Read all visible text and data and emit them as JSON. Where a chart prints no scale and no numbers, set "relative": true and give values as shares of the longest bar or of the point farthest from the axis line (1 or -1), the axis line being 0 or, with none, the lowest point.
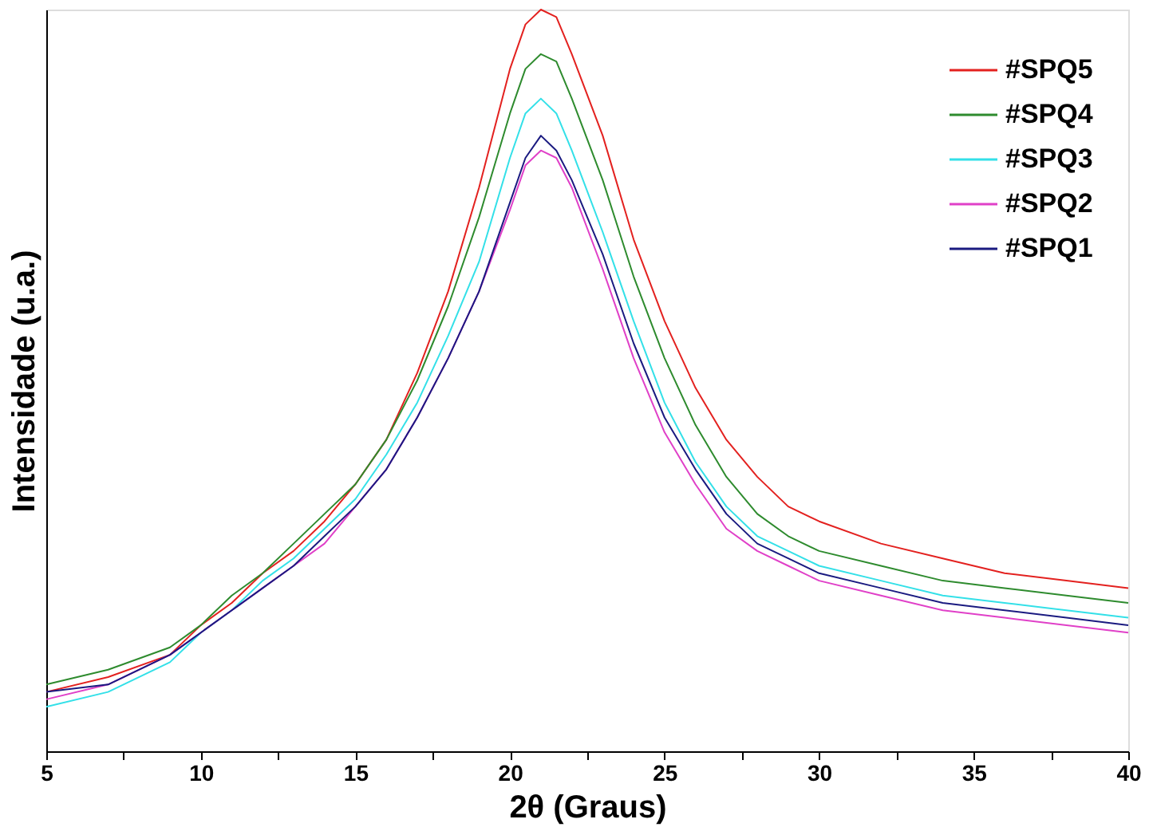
{
  "chart_data": {
    "type": "line",
    "xlabel": "2θ (Graus)",
    "ylabel": "Intensidade (u.a.)",
    "relative": true,
    "x": [
      5,
      7,
      9,
      10,
      11,
      12,
      13,
      14,
      15,
      16,
      17,
      18,
      19,
      20,
      20.5,
      21,
      21.5,
      22,
      23,
      24,
      25,
      26,
      27,
      28,
      29,
      30,
      32,
      34,
      36,
      38,
      40
    ],
    "xlim": [
      5,
      40
    ],
    "xticks": [
      5,
      {
        "value": 7.5,
        "label": null
      },
      10,
      {
        "value": 12.5,
        "label": null
      },
      15,
      {
        "value": 17.5,
        "label": null
      },
      20,
      {
        "value": 22.5,
        "label": null
      },
      25,
      {
        "value": 27.5,
        "label": null
      },
      30,
      {
        "value": 32.5,
        "label": null
      },
      35,
      {
        "value": 37.5,
        "label": null
      },
      40
    ],
    "legend": "top right",
    "grid": false,
    "marker": "none",
    "line_style": "solid",
    "series": [
      {
        "name": "#SPQ5",
        "color": "#e3211f",
        "values": [
          0.08,
          0.1,
          0.13,
          0.17,
          0.2,
          0.24,
          0.27,
          0.31,
          0.36,
          0.42,
          0.51,
          0.62,
          0.76,
          0.92,
          0.98,
          1.0,
          0.99,
          0.94,
          0.83,
          0.69,
          0.58,
          0.49,
          0.42,
          0.37,
          0.33,
          0.31,
          0.28,
          0.26,
          0.24,
          0.23,
          0.22
        ]
      },
      {
        "name": "#SPQ4",
        "color": "#2e8b2e",
        "values": [
          0.09,
          0.11,
          0.14,
          0.17,
          0.21,
          0.24,
          0.28,
          0.32,
          0.36,
          0.42,
          0.5,
          0.6,
          0.72,
          0.86,
          0.92,
          0.94,
          0.93,
          0.88,
          0.77,
          0.64,
          0.53,
          0.44,
          0.37,
          0.32,
          0.29,
          0.27,
          0.25,
          0.23,
          0.22,
          0.21,
          0.2
        ]
      },
      {
        "name": "#SPQ3",
        "color": "#33e0e8",
        "values": [
          0.06,
          0.08,
          0.12,
          0.16,
          0.19,
          0.23,
          0.26,
          0.3,
          0.34,
          0.4,
          0.47,
          0.56,
          0.66,
          0.8,
          0.86,
          0.88,
          0.86,
          0.81,
          0.7,
          0.58,
          0.47,
          0.39,
          0.33,
          0.29,
          0.27,
          0.25,
          0.23,
          0.21,
          0.2,
          0.19,
          0.18
        ]
      },
      {
        "name": "#SPQ2",
        "color": "#e040c8",
        "values": [
          0.07,
          0.09,
          0.13,
          0.16,
          0.19,
          0.22,
          0.25,
          0.28,
          0.33,
          0.38,
          0.45,
          0.53,
          0.62,
          0.73,
          0.79,
          0.81,
          0.8,
          0.76,
          0.65,
          0.53,
          0.43,
          0.36,
          0.3,
          0.27,
          0.25,
          0.23,
          0.21,
          0.19,
          0.18,
          0.17,
          0.16
        ]
      },
      {
        "name": "#SPQ1",
        "color": "#1a1a80",
        "values": [
          0.08,
          0.09,
          0.13,
          0.16,
          0.19,
          0.22,
          0.25,
          0.29,
          0.33,
          0.38,
          0.45,
          0.53,
          0.62,
          0.74,
          0.8,
          0.83,
          0.81,
          0.77,
          0.67,
          0.55,
          0.45,
          0.38,
          0.32,
          0.28,
          0.26,
          0.24,
          0.22,
          0.2,
          0.19,
          0.18,
          0.17
        ]
      }
    ]
  }
}
